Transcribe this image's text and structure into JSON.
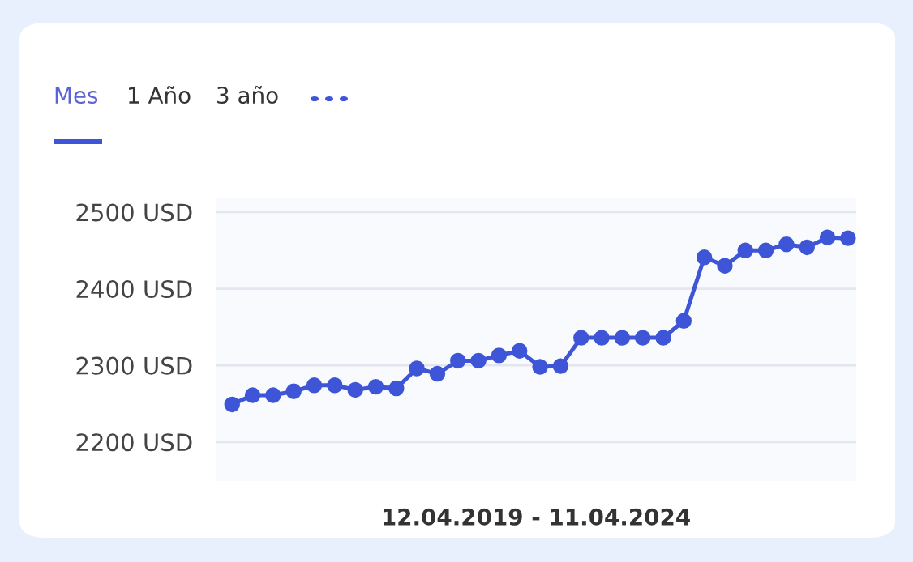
{
  "chart_data": {
    "type": "line",
    "annotations": [
      "Mes",
      "1 Año",
      "3 año"
    ],
    "xlabel": "12.04.2019 - 11.04.2024",
    "categories": [
      null,
      null,
      null,
      null,
      null,
      null,
      null,
      null,
      null,
      null,
      null,
      null,
      null,
      null,
      null,
      null,
      null,
      null,
      null,
      null,
      null,
      null,
      null,
      null,
      null,
      null,
      null,
      null,
      null,
      null,
      null
    ],
    "series": [
      {
        "color": "#3d55d6",
        "values": [
          2249,
          2261,
          2261,
          2266,
          2274,
          2274,
          2268,
          2272,
          2270,
          2296,
          2289,
          2306,
          2306,
          2313,
          2319,
          2298,
          2299,
          2336,
          2336,
          2336,
          2336,
          2336,
          2358,
          2441,
          2430,
          2450,
          2450,
          2458,
          2454,
          2467,
          2466
        ]
      }
    ],
    "ylim": [
      2149,
      2519
    ],
    "yticks": [
      {
        "value": 2200,
        "label": "2200 USD"
      },
      {
        "value": 2300,
        "label": "2300 USD"
      },
      {
        "value": 2400,
        "label": "2400 USD"
      },
      {
        "value": 2500,
        "label": "2500 USD"
      }
    ],
    "tick_labels": "y",
    "grid": "y",
    "marker": "circle",
    "line_style": "solid",
    "legend": false
  }
}
